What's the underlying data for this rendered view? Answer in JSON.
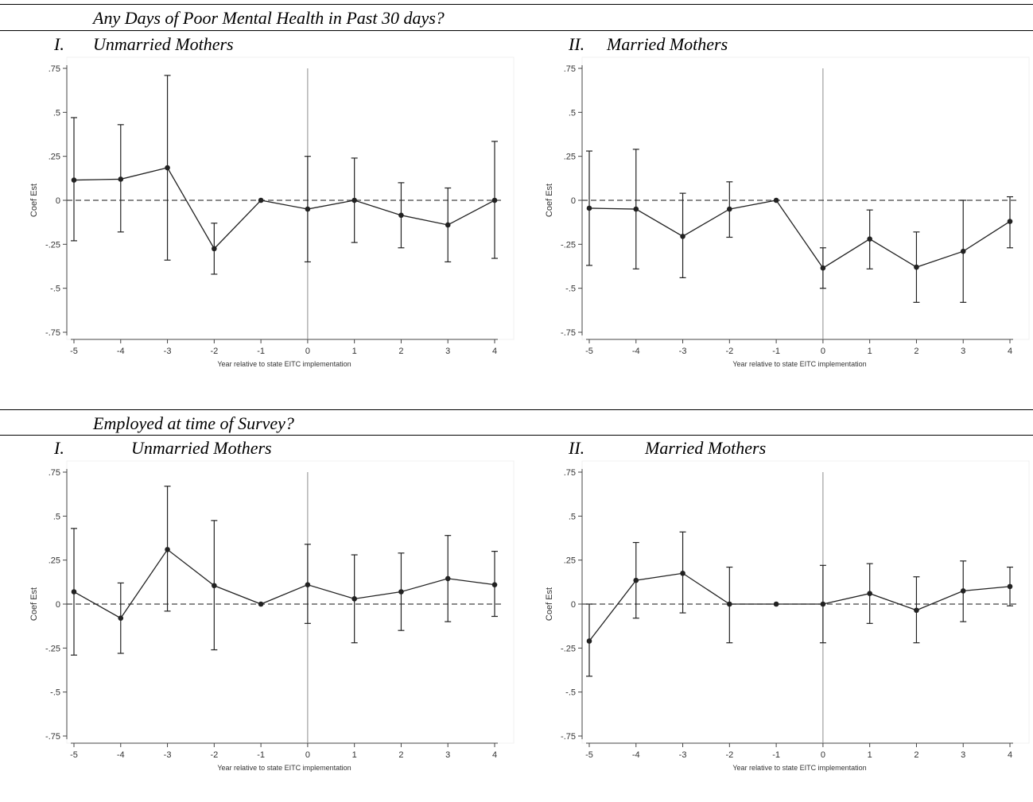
{
  "sections": [
    {
      "title": "Any Days of Poor Mental Health in Past 30 days?",
      "panels": [
        {
          "numeral": "I.",
          "label": "Unmarried Mothers"
        },
        {
          "numeral": "II.",
          "label": "Married Mothers"
        }
      ]
    },
    {
      "title": "Employed at time of Survey?",
      "panels": [
        {
          "numeral": "I.",
          "label": "Unmarried Mothers"
        },
        {
          "numeral": "II.",
          "label": "Married Mothers"
        }
      ]
    }
  ],
  "chart_data": [
    {
      "type": "line",
      "xlabel": "Year relative to state EITC implementation",
      "ylabel": "Coef Est",
      "x": [
        -5,
        -4,
        -3,
        -2,
        -1,
        0,
        1,
        2,
        3,
        4
      ],
      "xticks": [
        "-5",
        "-4",
        "-3",
        "-2",
        "-1",
        "0",
        "1",
        "2",
        "3",
        "4"
      ],
      "yticks": [
        ".75",
        ".5",
        ".25",
        "0",
        "-.25",
        "-.5",
        "-.75"
      ],
      "ylim": [
        -0.75,
        0.75
      ],
      "values": [
        0.115,
        0.12,
        0.185,
        -0.275,
        0.0,
        -0.05,
        0.0,
        -0.085,
        -0.14,
        0.0
      ],
      "ci_low": [
        -0.23,
        -0.18,
        -0.34,
        -0.42,
        0.0,
        -0.35,
        -0.24,
        -0.27,
        -0.35,
        -0.33
      ],
      "ci_high": [
        0.47,
        0.43,
        0.71,
        -0.13,
        0.0,
        0.25,
        0.24,
        0.1,
        0.07,
        0.335
      ],
      "reference_lines": {
        "horizontal_dashed_at": 0,
        "vertical_solid_at": 0
      }
    },
    {
      "type": "line",
      "xlabel": "Year relative to state EITC implementation",
      "ylabel": "Coef Est",
      "x": [
        -5,
        -4,
        -3,
        -2,
        -1,
        0,
        1,
        2,
        3,
        4
      ],
      "xticks": [
        "-5",
        "-4",
        "-3",
        "-2",
        "-1",
        "0",
        "1",
        "2",
        "3",
        "4"
      ],
      "yticks": [
        ".75",
        ".5",
        ".25",
        "0",
        "-.25",
        "-.5",
        "-.75"
      ],
      "ylim": [
        -0.75,
        0.75
      ],
      "values": [
        -0.045,
        -0.05,
        -0.205,
        -0.05,
        0.0,
        -0.385,
        -0.22,
        -0.38,
        -0.29,
        -0.12
      ],
      "ci_low": [
        -0.37,
        -0.39,
        -0.44,
        -0.21,
        0.0,
        -0.5,
        -0.39,
        -0.58,
        -0.58,
        -0.27
      ],
      "ci_high": [
        0.28,
        0.29,
        0.04,
        0.105,
        0.0,
        -0.27,
        -0.055,
        -0.18,
        -0.0,
        0.02
      ],
      "reference_lines": {
        "horizontal_dashed_at": 0,
        "vertical_solid_at": 0
      }
    },
    {
      "type": "line",
      "xlabel": "Year relative to state EITC implementation",
      "ylabel": "Coef Est",
      "x": [
        -5,
        -4,
        -3,
        -2,
        -1,
        0,
        1,
        2,
        3,
        4
      ],
      "xticks": [
        "-5",
        "-4",
        "-3",
        "-2",
        "-1",
        "0",
        "1",
        "2",
        "3",
        "4"
      ],
      "yticks": [
        ".75",
        ".5",
        ".25",
        "0",
        "-.25",
        "-.5",
        "-.75"
      ],
      "ylim": [
        -0.75,
        0.75
      ],
      "values": [
        0.07,
        -0.08,
        0.31,
        0.105,
        0.0,
        0.11,
        0.03,
        0.07,
        0.145,
        0.11
      ],
      "ci_low": [
        -0.29,
        -0.28,
        -0.04,
        -0.26,
        0.0,
        -0.11,
        -0.22,
        -0.15,
        -0.1,
        -0.07
      ],
      "ci_high": [
        0.43,
        0.12,
        0.67,
        0.475,
        0.0,
        0.34,
        0.28,
        0.29,
        0.39,
        0.3
      ],
      "reference_lines": {
        "horizontal_dashed_at": 0,
        "vertical_solid_at": 0
      }
    },
    {
      "type": "line",
      "xlabel": "Year relative to state EITC implementation",
      "ylabel": "Coef Est",
      "x": [
        -5,
        -4,
        -3,
        -2,
        -1,
        0,
        1,
        2,
        3,
        4
      ],
      "xticks": [
        "-5",
        "-4",
        "-3",
        "-2",
        "-1",
        "0",
        "1",
        "2",
        "3",
        "4"
      ],
      "yticks": [
        ".75",
        ".5",
        ".25",
        "0",
        "-.25",
        "-.5",
        "-.75"
      ],
      "ylim": [
        -0.75,
        0.75
      ],
      "values": [
        -0.21,
        0.135,
        0.175,
        0.0,
        0.0,
        0.0,
        0.06,
        -0.035,
        0.075,
        0.1
      ],
      "ci_low": [
        -0.41,
        -0.08,
        -0.05,
        -0.22,
        0.0,
        -0.22,
        -0.11,
        -0.22,
        -0.1,
        -0.01
      ],
      "ci_high": [
        0.0,
        0.35,
        0.41,
        0.21,
        0.0,
        0.22,
        0.23,
        0.155,
        0.245,
        0.21
      ],
      "reference_lines": {
        "horizontal_dashed_at": 0,
        "vertical_solid_at": 0
      }
    }
  ]
}
